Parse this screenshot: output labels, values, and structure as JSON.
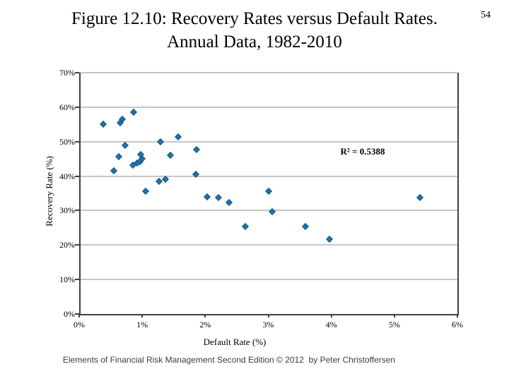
{
  "slide": {
    "number": "54",
    "title_line1": "Figure 12.10: Recovery Rates versus Default Rates.",
    "title_line2": "Annual Data, 1982-2010",
    "footer": "Elements of Financial Risk Management Second Edition © 2012  by Peter Christoffersen"
  },
  "chart_data": {
    "type": "scatter",
    "title": "Figure 12.10: Recovery Rates versus Default Rates. Annual Data, 1982-2010",
    "xlabel": "Default Rate (%)",
    "ylabel": "Recovery Rate (%)",
    "annotation": "R² = 0.5388",
    "xlim": [
      0,
      6
    ],
    "ylim": [
      0,
      70
    ],
    "x_tick_labels": [
      "0%",
      "1%",
      "2%",
      "3%",
      "4%",
      "5%",
      "6%"
    ],
    "y_tick_labels": [
      "0%",
      "10%",
      "20%",
      "30%",
      "40%",
      "50%",
      "60%",
      "70%"
    ],
    "grid": "horizontal",
    "legend": "none",
    "colors": {
      "marker_fill": "#1f72ae",
      "marker_stroke": "#14587f",
      "gridline": "#c6c6c6",
      "axis": "#404040"
    },
    "points": [
      [
        0.38,
        55.0
      ],
      [
        0.65,
        55.4
      ],
      [
        0.68,
        56.5
      ],
      [
        0.86,
        58.6
      ],
      [
        0.73,
        49.0
      ],
      [
        0.63,
        45.7
      ],
      [
        0.55,
        41.5
      ],
      [
        0.85,
        43.2
      ],
      [
        0.92,
        43.7
      ],
      [
        0.97,
        44.3
      ],
      [
        1.0,
        45.0
      ],
      [
        0.98,
        46.3
      ],
      [
        1.29,
        50.0
      ],
      [
        1.57,
        51.4
      ],
      [
        1.45,
        46.0
      ],
      [
        1.86,
        47.6
      ],
      [
        1.85,
        40.6
      ],
      [
        1.05,
        35.6
      ],
      [
        1.27,
        38.4
      ],
      [
        1.37,
        39.0
      ],
      [
        2.03,
        33.9
      ],
      [
        2.21,
        33.7
      ],
      [
        2.38,
        32.3
      ],
      [
        2.64,
        25.3
      ],
      [
        3.01,
        35.6
      ],
      [
        3.06,
        29.7
      ],
      [
        3.59,
        25.4
      ],
      [
        3.97,
        21.6
      ],
      [
        5.41,
        33.8
      ]
    ]
  }
}
